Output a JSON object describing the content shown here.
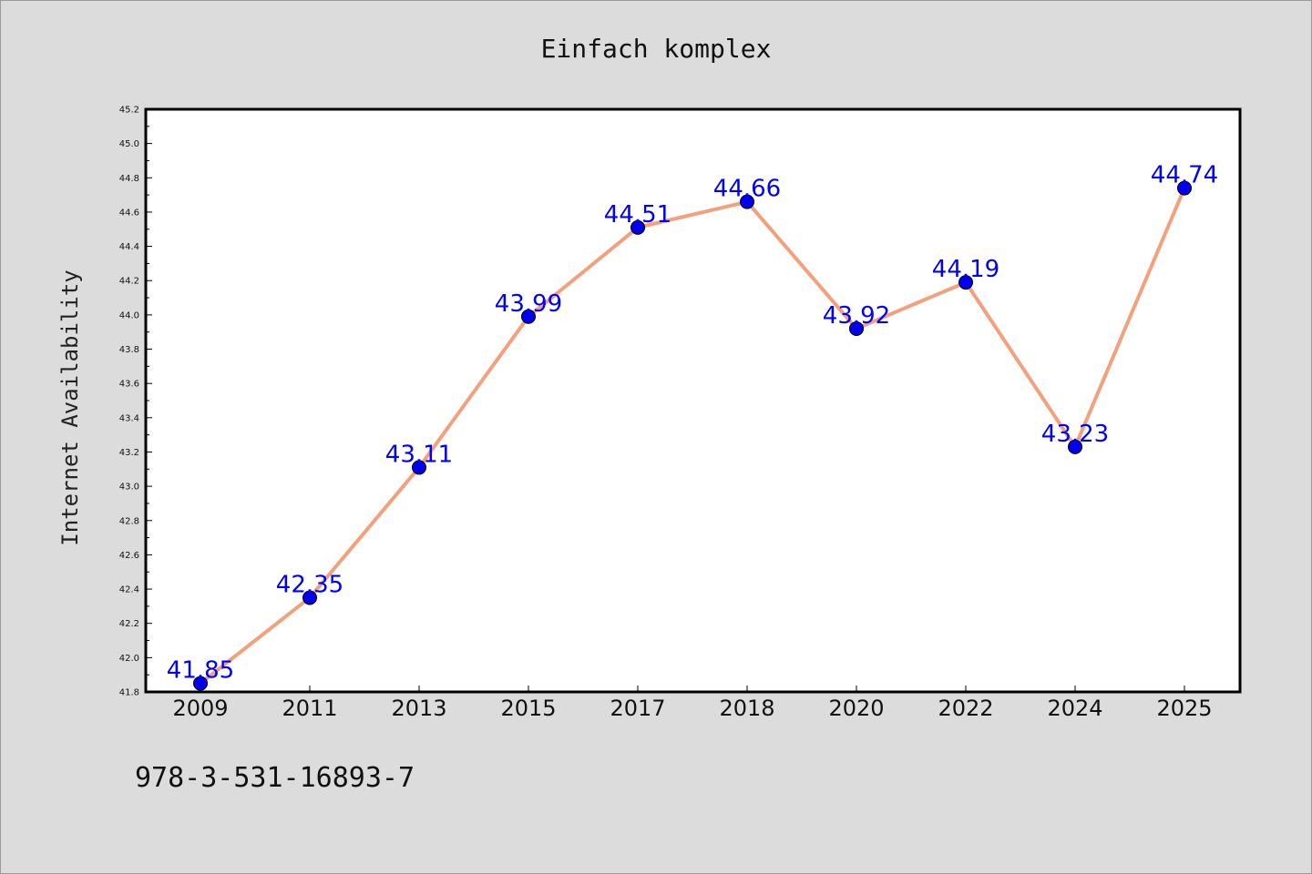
{
  "chart_data": {
    "type": "line",
    "title": "Einfach komplex",
    "xlabel": "",
    "ylabel": "Internet Availability",
    "categories": [
      "2009",
      "2011",
      "2013",
      "2015",
      "2017",
      "2018",
      "2020",
      "2022",
      "2024",
      "2025"
    ],
    "series": [
      {
        "values": [
          41.85,
          42.35,
          43.11,
          43.99,
          44.51,
          44.66,
          43.92,
          44.19,
          43.23,
          44.74
        ],
        "labels": [
          "41.85",
          "42.35",
          "43.11",
          "43.99",
          "44.51",
          "44.66",
          "43.92",
          "44.19",
          "43.23",
          "44.74"
        ],
        "line_color": "#f4a07c",
        "marker_color": "#0000ee"
      }
    ],
    "ylim": [
      41.8,
      45.2
    ],
    "yticks": [
      "41.8",
      "42.0",
      "42.2",
      "42.4",
      "42.6",
      "42.8",
      "43.0",
      "43.2",
      "43.4",
      "43.6",
      "43.8",
      "44.0",
      "44.2",
      "44.4",
      "44.6",
      "44.8",
      "45.0",
      "45.2"
    ],
    "grid": false,
    "legend": "none"
  },
  "footer": {
    "isbn": "978-3-531-16893-7"
  },
  "colors": {
    "background": "#dcdcdc",
    "plot_background": "#ffffff",
    "data_label": "#0000ff"
  }
}
